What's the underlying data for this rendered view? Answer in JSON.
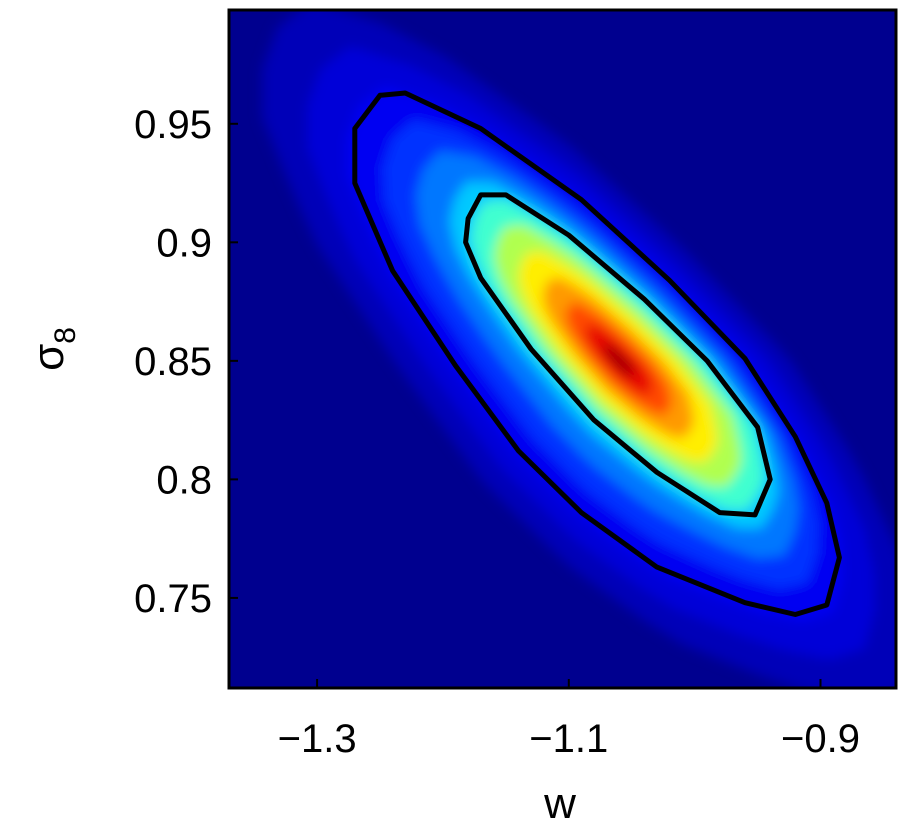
{
  "chart_data": {
    "type": "heatmap",
    "title": "",
    "xlabel": "w",
    "ylabel": {
      "base": "σ",
      "subscript": "8"
    },
    "xlim": [
      -1.37,
      -0.84
    ],
    "ylim": [
      0.712,
      0.998
    ],
    "x_ticks": [
      {
        "value": -1.3,
        "label": "−1.3"
      },
      {
        "value": -1.1,
        "label": "−1.1"
      },
      {
        "value": -0.9,
        "label": "−0.9"
      }
    ],
    "y_ticks": [
      {
        "value": 0.75,
        "label": "0.75"
      },
      {
        "value": 0.8,
        "label": "0.8"
      },
      {
        "value": 0.85,
        "label": "0.85"
      },
      {
        "value": 0.9,
        "label": "0.9"
      },
      {
        "value": 0.95,
        "label": "0.95"
      }
    ],
    "colormap": "jet",
    "background_color": "#00008f",
    "peak": {
      "w": -1.06,
      "sigma8": 0.85
    },
    "contours": [
      {
        "level": "outer",
        "color": "#000000",
        "points": [
          [
            -1.27,
            0.948
          ],
          [
            -1.25,
            0.962
          ],
          [
            -1.23,
            0.963
          ],
          [
            -1.17,
            0.948
          ],
          [
            -1.09,
            0.918
          ],
          [
            -1.02,
            0.884
          ],
          [
            -0.96,
            0.851
          ],
          [
            -0.92,
            0.818
          ],
          [
            -0.895,
            0.79
          ],
          [
            -0.885,
            0.767
          ],
          [
            -0.895,
            0.747
          ],
          [
            -0.92,
            0.743
          ],
          [
            -0.96,
            0.748
          ],
          [
            -1.03,
            0.763
          ],
          [
            -1.09,
            0.786
          ],
          [
            -1.14,
            0.812
          ],
          [
            -1.19,
            0.848
          ],
          [
            -1.24,
            0.888
          ],
          [
            -1.27,
            0.925
          ]
        ]
      },
      {
        "level": "inner",
        "color": "#000000",
        "points": [
          [
            -1.18,
            0.91
          ],
          [
            -1.17,
            0.92
          ],
          [
            -1.15,
            0.92
          ],
          [
            -1.1,
            0.903
          ],
          [
            -1.04,
            0.876
          ],
          [
            -0.99,
            0.85
          ],
          [
            -0.95,
            0.822
          ],
          [
            -0.94,
            0.8
          ],
          [
            -0.952,
            0.785
          ],
          [
            -0.98,
            0.786
          ],
          [
            -1.03,
            0.803
          ],
          [
            -1.08,
            0.825
          ],
          [
            -1.13,
            0.855
          ],
          [
            -1.17,
            0.885
          ],
          [
            -1.182,
            0.9
          ]
        ]
      }
    ],
    "grid": false,
    "legend": "none"
  }
}
